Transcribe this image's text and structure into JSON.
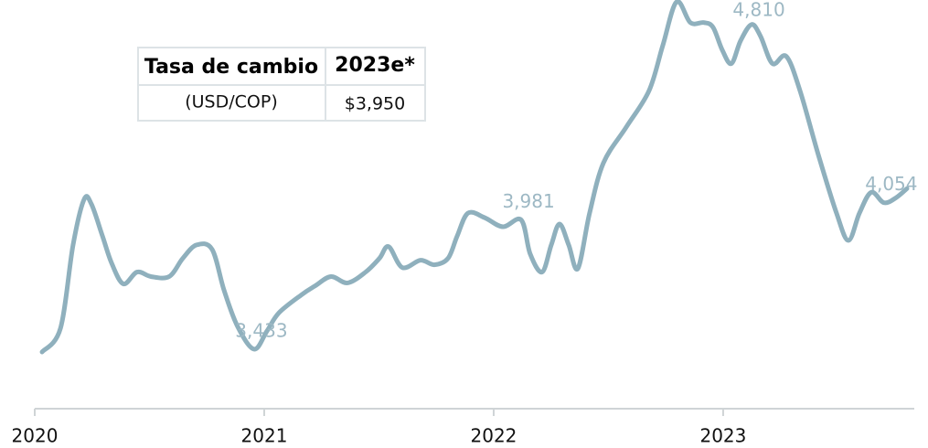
{
  "chart_data": {
    "type": "line",
    "x": [
      2020.032,
      2020.112,
      2020.167,
      2020.215,
      2020.247,
      2020.295,
      2020.335,
      2020.386,
      2020.446,
      2020.506,
      2020.586,
      2020.645,
      2020.705,
      2020.773,
      2020.825,
      2020.884,
      2020.956,
      2021.012,
      2021.064,
      2021.163,
      2021.223,
      2021.291,
      2021.363,
      2021.442,
      2021.502,
      2021.542,
      2021.602,
      2021.681,
      2021.741,
      2021.801,
      2021.841,
      2021.888,
      2021.96,
      2022.04,
      2022.12,
      2022.159,
      2022.211,
      2022.251,
      2022.287,
      2022.327,
      2022.367,
      2022.418,
      2022.478,
      2022.578,
      2022.677,
      2022.737,
      2022.797,
      2022.857,
      2022.916,
      2022.956,
      2022.996,
      2023.036,
      2023.076,
      2023.124,
      2023.163,
      2023.215,
      2023.275,
      2023.335,
      2023.414,
      2023.494,
      2023.546,
      2023.594,
      2023.645,
      2023.701,
      2023.753,
      2023.801
    ],
    "series": [
      {
        "color": "#8fb0bd",
        "values": [
          3421,
          3521,
          3875,
          4068,
          4048,
          3913,
          3798,
          3710,
          3760,
          3741,
          3741,
          3818,
          3875,
          3856,
          3683,
          3529,
          3433,
          3510,
          3587,
          3664,
          3702,
          3741,
          3714,
          3760,
          3818,
          3868,
          3779,
          3810,
          3791,
          3818,
          3913,
          4010,
          3991,
          3952,
          3981,
          3837,
          3760,
          3875,
          3964,
          3875,
          3775,
          4010,
          4222,
          4375,
          4529,
          4721,
          4906,
          4818,
          4818,
          4798,
          4702,
          4644,
          4741,
          4810,
          4760,
          4644,
          4675,
          4529,
          4260,
          4010,
          3894,
          4010,
          4098,
          4054,
          4075,
          4114
        ],
        "value_labels": [
          null,
          null,
          null,
          null,
          null,
          null,
          null,
          null,
          null,
          null,
          null,
          null,
          null,
          null,
          null,
          null,
          "3,433",
          null,
          null,
          null,
          null,
          null,
          null,
          null,
          null,
          null,
          null,
          null,
          null,
          null,
          null,
          null,
          null,
          null,
          "3,981",
          null,
          null,
          null,
          null,
          null,
          null,
          null,
          null,
          null,
          null,
          null,
          null,
          null,
          null,
          null,
          null,
          null,
          null,
          "4,810",
          null,
          null,
          null,
          null,
          null,
          null,
          null,
          null,
          null,
          "4,054",
          null,
          null
        ]
      }
    ],
    "xlim": [
      2020,
      2023.833
    ],
    "xticks": [
      2020,
      2021,
      2022,
      2023
    ],
    "table": {
      "header": [
        "Tasa de cambio",
        "2023e*"
      ],
      "rows": [
        [
          "(USD/COP)",
          "$3,950"
        ]
      ]
    }
  }
}
